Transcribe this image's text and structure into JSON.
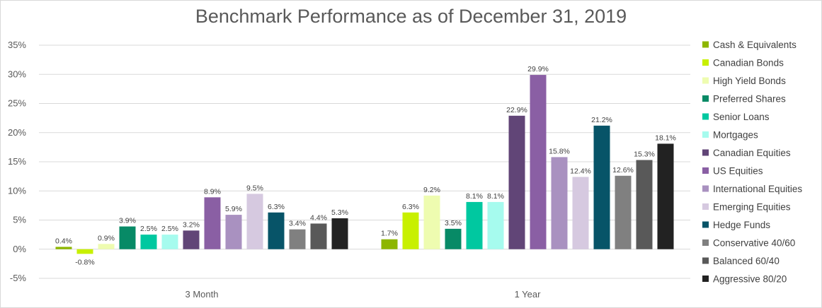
{
  "chart_data": {
    "type": "bar",
    "title": "Benchmark Performance as of December 31, 2019",
    "xlabel": "",
    "ylabel": "",
    "categories": [
      "3 Month",
      "1 Year"
    ],
    "ylim": [
      -5,
      35
    ],
    "yticks": [
      -5,
      0,
      5,
      10,
      15,
      20,
      25,
      30,
      35
    ],
    "ytick_labels": [
      "-5%",
      "0%",
      "5%",
      "10%",
      "15%",
      "20%",
      "25%",
      "30%",
      "35%"
    ],
    "grid": true,
    "legend_position": "right",
    "series": [
      {
        "name": "Cash & Equivalents",
        "color": "#8db600",
        "values": [
          0.4,
          1.7
        ],
        "labels": [
          "0.4%",
          "1.7%"
        ]
      },
      {
        "name": "Canadian Bonds",
        "color": "#c8f000",
        "values": [
          -0.8,
          6.3
        ],
        "labels": [
          "-0.8%",
          "6.3%"
        ]
      },
      {
        "name": "High Yield Bonds",
        "color": "#eefcb0",
        "values": [
          0.9,
          9.2
        ],
        "labels": [
          "0.9%",
          "9.2%"
        ]
      },
      {
        "name": "Preferred Shares",
        "color": "#078a66",
        "values": [
          3.9,
          3.5
        ],
        "labels": [
          "3.9%",
          "3.5%"
        ]
      },
      {
        "name": "Senior Loans",
        "color": "#00c8a0",
        "values": [
          2.5,
          8.1
        ],
        "labels": [
          "2.5%",
          "8.1%"
        ]
      },
      {
        "name": "Mortgages",
        "color": "#a6fbee",
        "values": [
          2.5,
          8.1
        ],
        "labels": [
          "2.5%",
          "8.1%"
        ]
      },
      {
        "name": "Canadian Equities",
        "color": "#614577",
        "values": [
          3.2,
          22.9
        ],
        "labels": [
          "3.2%",
          "22.9%"
        ]
      },
      {
        "name": "US Equities",
        "color": "#8a5fa4",
        "values": [
          8.9,
          29.9
        ],
        "labels": [
          "8.9%",
          "29.9%"
        ]
      },
      {
        "name": "International Equities",
        "color": "#a991c0",
        "values": [
          5.9,
          15.8
        ],
        "labels": [
          "5.9%",
          "15.8%"
        ]
      },
      {
        "name": "Emerging Equities",
        "color": "#d6c9e0",
        "values": [
          9.5,
          12.4
        ],
        "labels": [
          "9.5%",
          "12.4%"
        ]
      },
      {
        "name": "Hedge Funds",
        "color": "#075468",
        "values": [
          6.3,
          21.2
        ],
        "labels": [
          "6.3%",
          "21.2%"
        ]
      },
      {
        "name": "Conservative 40/60",
        "color": "#808080",
        "values": [
          3.4,
          12.6
        ],
        "labels": [
          "3.4%",
          "12.6%"
        ]
      },
      {
        "name": "Balanced 60/40",
        "color": "#595959",
        "values": [
          4.4,
          15.3
        ],
        "labels": [
          "4.4%",
          "15.3%"
        ]
      },
      {
        "name": "Aggressive 80/20",
        "color": "#222222",
        "values": [
          5.3,
          18.1
        ],
        "labels": [
          "5.3%",
          "18.1%"
        ]
      }
    ]
  }
}
